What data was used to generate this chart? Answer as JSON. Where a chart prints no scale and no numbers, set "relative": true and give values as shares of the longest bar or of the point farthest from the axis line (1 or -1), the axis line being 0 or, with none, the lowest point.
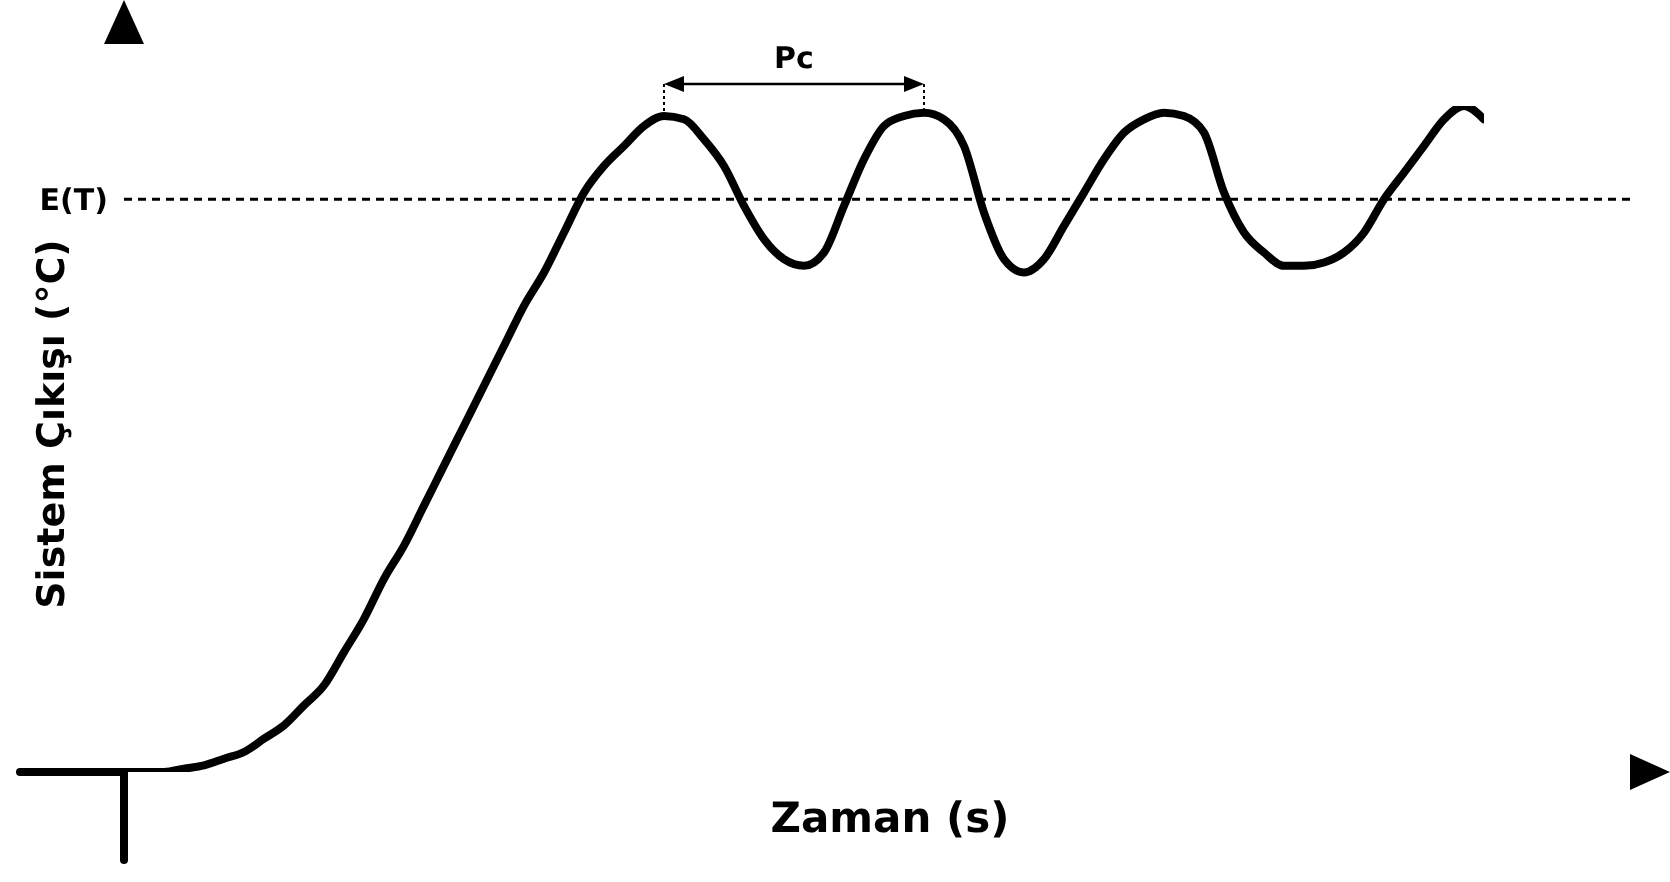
{
  "chart_data": {
    "type": "line",
    "xlabel": "Zaman (s)",
    "ylabel": "Sistem Çıkışı (°C)",
    "relative": true,
    "categories": [
      null,
      null,
      null,
      null,
      null,
      null,
      null,
      null,
      null,
      null,
      null,
      null,
      null,
      null,
      null,
      null,
      null,
      null,
      null,
      null,
      null,
      null,
      null,
      null,
      null,
      null,
      null,
      null,
      null,
      null,
      null,
      null,
      null,
      null,
      null,
      null,
      null,
      null,
      null,
      null,
      null,
      null,
      null,
      null,
      null,
      null,
      null,
      null,
      null,
      null,
      null,
      null,
      null,
      null,
      null,
      null,
      null,
      null,
      null,
      null,
      null,
      null,
      null,
      null,
      null,
      null,
      null,
      null,
      null
    ],
    "series": [
      {
        "color": "#000000",
        "values": [
          0,
          0,
          0,
          0.005,
          0.01,
          0.02,
          0.03,
          0.05,
          0.07,
          0.1,
          0.13,
          0.18,
          0.23,
          0.29,
          0.34,
          0.4,
          0.46,
          0.52,
          0.58,
          0.64,
          0.7,
          0.75,
          0.81,
          0.87,
          0.91,
          0.94,
          0.97,
          0.985,
          0.98,
          0.95,
          0.91,
          0.85,
          0.8,
          0.77,
          0.76,
          0.78,
          0.85,
          0.92,
          0.97,
          0.985,
          0.99,
          0.98,
          0.94,
          0.84,
          0.77,
          0.75,
          0.77,
          0.82,
          0.87,
          0.92,
          0.96,
          0.98,
          0.99,
          0.985,
          0.96,
          0.87,
          0.81,
          0.78,
          0.76,
          0.76,
          0.765,
          0.78,
          0.81,
          0.86,
          0.9,
          0.94,
          0.98,
          1,
          0.98
        ]
      }
    ],
    "ref_lines": [
      {
        "axis": "y",
        "value": 0.86,
        "label": "E(T)",
        "color": "#000000",
        "line_style": "dashed"
      }
    ],
    "annotations": [
      "Pc"
    ]
  }
}
